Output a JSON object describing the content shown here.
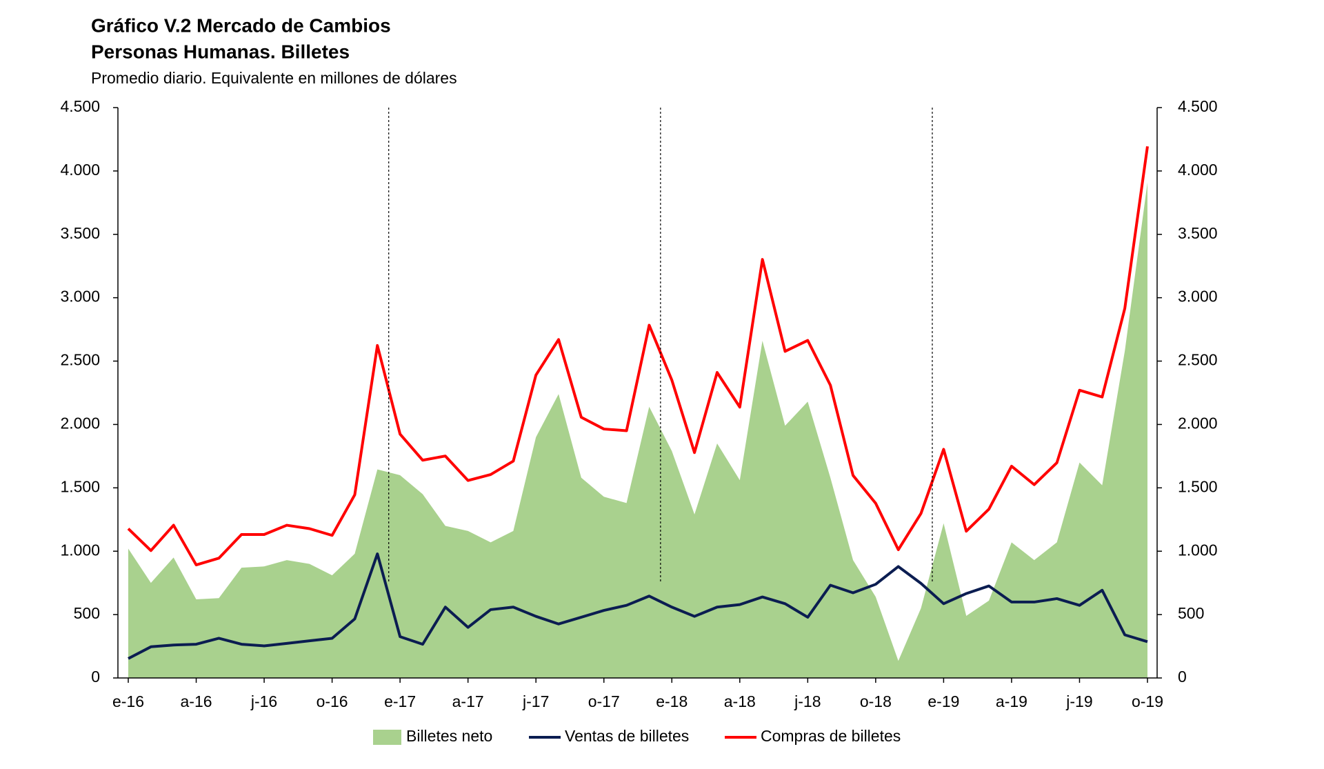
{
  "chart_data": {
    "type": "line",
    "title": "Gráfico V.2 Mercado de Cambios",
    "subtitle": "Personas Humanas. Billetes",
    "note": "Promedio diario. Equivalente en millones de dólares",
    "categories": [
      "e-16",
      null,
      null,
      "a-16",
      null,
      null,
      "j-16",
      null,
      null,
      "o-16",
      null,
      null,
      "e-17",
      null,
      null,
      "a-17",
      null,
      null,
      "j-17",
      null,
      null,
      "o-17",
      null,
      null,
      "e-18",
      null,
      null,
      "a-18",
      null,
      null,
      "j-18",
      null,
      null,
      "o-18",
      null,
      null,
      "e-19",
      null,
      null,
      "a-19",
      null,
      null,
      "j-19",
      null,
      null,
      "o-19"
    ],
    "series": [
      {
        "name": "Billetes neto",
        "kind": "area",
        "color": "#a9d18e",
        "values": [
          1020,
          750,
          950,
          620,
          630,
          870,
          880,
          930,
          900,
          810,
          980,
          1645,
          1600,
          1450,
          1200,
          1160,
          1070,
          1160,
          1900,
          2240,
          1580,
          1430,
          1380,
          2140,
          1790,
          1290,
          1850,
          1560,
          2660,
          1990,
          2180,
          1580,
          930,
          640,
          135,
          550,
          1220,
          490,
          610,
          1070,
          930,
          1070,
          1700,
          1520,
          2580,
          3910
        ]
      },
      {
        "name": "Ventas de billetes",
        "kind": "line",
        "color": "#0b1d51",
        "values": [
          153,
          246,
          260,
          266,
          313,
          266,
          253,
          273,
          293,
          313,
          466,
          979,
          326,
          266,
          559,
          399,
          539,
          559,
          486,
          426,
          479,
          533,
          573,
          646,
          559,
          486,
          559,
          579,
          639,
          586,
          479,
          732,
          672,
          739,
          879,
          746,
          586,
          666,
          726,
          599,
          599,
          626,
          573,
          692,
          340,
          286
        ]
      },
      {
        "name": "Compras de billetes",
        "kind": "line",
        "color": "#ff0000",
        "values": [
          1178,
          1005,
          1205,
          892,
          945,
          1132,
          1132,
          1205,
          1178,
          1125,
          1445,
          2623,
          1924,
          1718,
          1751,
          1558,
          1605,
          1711,
          2390,
          2670,
          2057,
          1964,
          1951,
          2783,
          2350,
          1778,
          2410,
          2137,
          3302,
          2577,
          2663,
          2310,
          1598,
          1378,
          1012,
          1298,
          1804,
          1158,
          1332,
          1671,
          1525,
          1698,
          2270,
          2217,
          2916,
          4194
        ]
      }
    ],
    "ylim": [
      0,
      4500
    ],
    "yticks": [
      0,
      500,
      {
        "value": 1000,
        "label": "1.000"
      },
      {
        "value": 1500,
        "label": "1.500"
      },
      {
        "value": 2000,
        "label": "2.000"
      },
      {
        "value": 2500,
        "label": "2.500"
      },
      {
        "value": 3000,
        "label": "3.000"
      },
      {
        "value": 3500,
        "label": "3.500"
      },
      {
        "value": 4000,
        "label": "4.000"
      },
      {
        "value": 4500,
        "label": "4.500"
      }
    ],
    "y2lim": [
      0,
      4500
    ],
    "y2ticks": [
      0,
      500,
      {
        "value": 1000,
        "label": "1.000"
      },
      {
        "value": 1500,
        "label": "1.500"
      },
      {
        "value": 2000,
        "label": "2.000"
      },
      {
        "value": 2500,
        "label": "2.500"
      },
      {
        "value": 3000,
        "label": "3.000"
      },
      {
        "value": 3500,
        "label": "3.500"
      },
      {
        "value": 4000,
        "label": "4.000"
      },
      {
        "value": 4500,
        "label": "4.500"
      }
    ],
    "legend": "bottom"
  }
}
